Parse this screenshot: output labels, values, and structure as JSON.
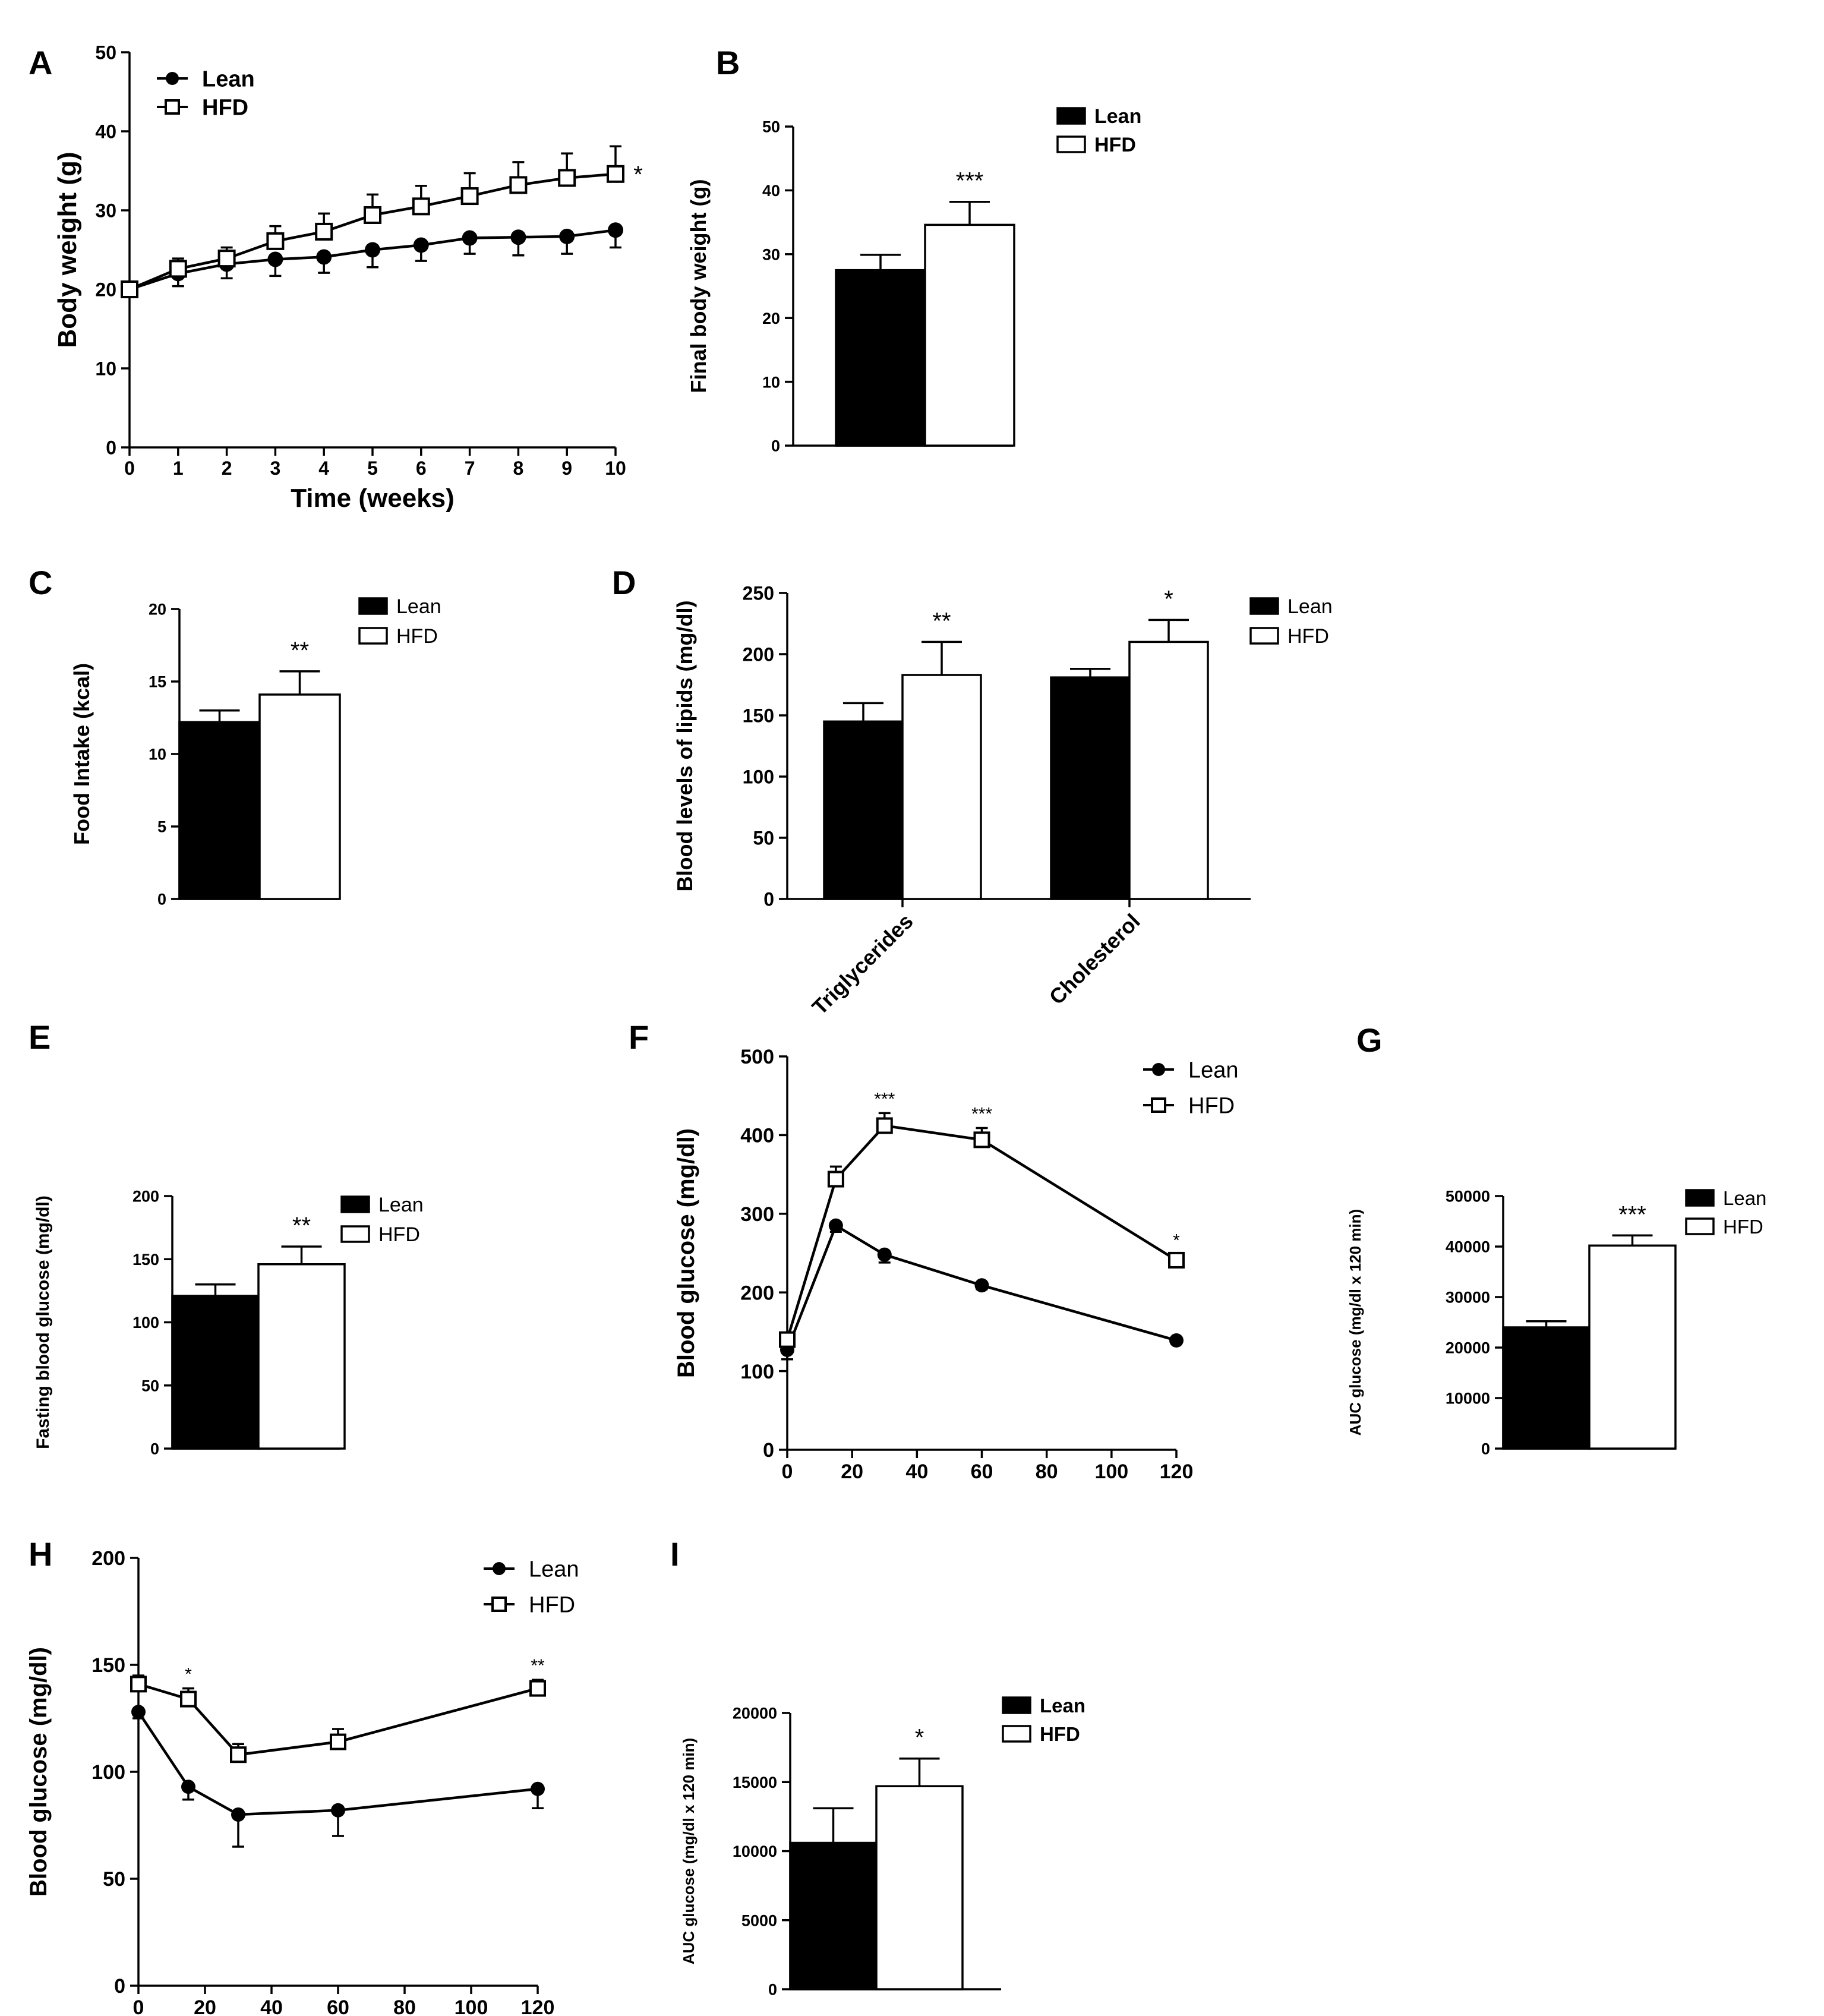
{
  "chart_data": [
    {
      "id": "A",
      "panel_label": "A",
      "type": "line",
      "xlabel": "Time (weeks)",
      "ylabel": "Body weight (g)",
      "xlim": [
        0,
        10
      ],
      "ylim": [
        0,
        50
      ],
      "xticks": [
        0,
        1,
        2,
        3,
        4,
        5,
        6,
        7,
        8,
        9,
        10
      ],
      "yticks": [
        0,
        10,
        20,
        30,
        40,
        50
      ],
      "legend": "top-left",
      "series": [
        {
          "name": "Lean",
          "marker": "filled-circle",
          "x": [
            0,
            1,
            2,
            3,
            4,
            5,
            6,
            7,
            8,
            9,
            10
          ],
          "values": [
            20,
            22,
            23.2,
            23.8,
            24.1,
            25,
            25.6,
            26.5,
            26.6,
            26.7,
            27.5
          ],
          "errors": [
            0.8,
            1.6,
            1.8,
            2.1,
            2,
            2.2,
            2,
            2,
            2.3,
            2.2,
            2.2
          ]
        },
        {
          "name": "HFD",
          "marker": "open-square",
          "x": [
            0,
            1,
            2,
            3,
            4,
            5,
            6,
            7,
            8,
            9,
            10
          ],
          "values": [
            20,
            22.6,
            23.9,
            26.1,
            27.3,
            29.4,
            30.5,
            31.8,
            33.2,
            34.1,
            34.6
          ],
          "errors": [
            0.9,
            1.3,
            1.4,
            1.9,
            2.3,
            2.6,
            2.6,
            2.9,
            2.9,
            3.1,
            3.5
          ]
        }
      ],
      "annotations": [
        {
          "text": "*",
          "series": "HFD",
          "x": 10
        }
      ]
    },
    {
      "id": "B",
      "panel_label": "B",
      "type": "bar",
      "ylabel": "Final body weight (g)",
      "ylim": [
        0,
        50
      ],
      "yticks": [
        0,
        10,
        20,
        30,
        40,
        50
      ],
      "legend": "top-right",
      "series": [
        {
          "name": "Lean",
          "fill": "#000000",
          "values": [
            27.5
          ],
          "errors": [
            2.4
          ]
        },
        {
          "name": "HFD",
          "fill": "#ffffff",
          "values": [
            34.6
          ],
          "errors": [
            3.6
          ]
        }
      ],
      "annotations": [
        {
          "text": "***",
          "series": "HFD",
          "index": 0
        }
      ]
    },
    {
      "id": "C",
      "panel_label": "C",
      "type": "bar",
      "ylabel": "Food Intake (kcal)",
      "ylim": [
        0,
        20
      ],
      "yticks": [
        0,
        5,
        10,
        15,
        20
      ],
      "legend": "top-right",
      "series": [
        {
          "name": "Lean",
          "fill": "#000000",
          "values": [
            12.2
          ],
          "errors": [
            0.8
          ]
        },
        {
          "name": "HFD",
          "fill": "#ffffff",
          "values": [
            14.1
          ],
          "errors": [
            1.6
          ]
        }
      ],
      "annotations": [
        {
          "text": "**",
          "series": "HFD",
          "index": 0
        }
      ]
    },
    {
      "id": "D",
      "panel_label": "D",
      "type": "bar",
      "ylabel": "Blood levels of lipids (mg/dl)",
      "ylim": [
        0,
        250
      ],
      "yticks": [
        0,
        50,
        100,
        150,
        200,
        250
      ],
      "categories": [
        "Triglycerides",
        "Cholesterol"
      ],
      "legend": "top-right",
      "series": [
        {
          "name": "Lean",
          "fill": "#000000",
          "values": [
            145,
            181
          ],
          "errors": [
            15,
            7
          ]
        },
        {
          "name": "HFD",
          "fill": "#ffffff",
          "values": [
            183,
            210
          ],
          "errors": [
            27,
            18
          ]
        }
      ],
      "annotations": [
        {
          "text": "**",
          "series": "HFD",
          "index": 0
        },
        {
          "text": "*",
          "series": "HFD",
          "index": 1
        }
      ]
    },
    {
      "id": "E",
      "panel_label": "E",
      "type": "bar",
      "ylabel": "Fasting blood glucose (mg/dl)",
      "ylim": [
        0,
        200
      ],
      "yticks": [
        0,
        50,
        100,
        150,
        200
      ],
      "legend": "top-right",
      "series": [
        {
          "name": "Lean",
          "fill": "#000000",
          "values": [
            121
          ],
          "errors": [
            9
          ]
        },
        {
          "name": "HFD",
          "fill": "#ffffff",
          "values": [
            146
          ],
          "errors": [
            14
          ]
        }
      ],
      "annotations": [
        {
          "text": "**",
          "series": "HFD",
          "index": 0
        }
      ]
    },
    {
      "id": "F",
      "panel_label": "F",
      "type": "line",
      "xlabel": "",
      "ylabel": "Blood glucose (mg/dl)",
      "xlim": [
        0,
        120
      ],
      "ylim": [
        0,
        500
      ],
      "xticks": [
        0,
        20,
        40,
        60,
        80,
        100,
        120
      ],
      "yticks": [
        0,
        100,
        200,
        300,
        400,
        500
      ],
      "legend": "top-right",
      "series": [
        {
          "name": "Lean",
          "marker": "filled-circle",
          "x": [
            0,
            15,
            30,
            60,
            120
          ],
          "values": [
            127,
            285,
            248,
            209,
            139
          ],
          "errors": [
            12,
            8,
            10,
            5,
            4
          ]
        },
        {
          "name": "HFD",
          "marker": "open-square",
          "x": [
            0,
            15,
            30,
            60,
            120
          ],
          "values": [
            140,
            344,
            412,
            394,
            241
          ],
          "errors": [
            8,
            16,
            16,
            15,
            7
          ]
        }
      ],
      "annotations": [
        {
          "text": "***",
          "series": "HFD",
          "x": 30
        },
        {
          "text": "***",
          "series": "HFD",
          "x": 60
        },
        {
          "text": "*",
          "series": "HFD",
          "x": 120
        }
      ]
    },
    {
      "id": "G",
      "panel_label": "G",
      "type": "bar",
      "ylabel": "AUC glucose (mg/dl x 120 min)",
      "ylim": [
        0,
        50000
      ],
      "yticks": [
        0,
        10000,
        20000,
        30000,
        40000,
        50000
      ],
      "legend": "top-right",
      "series": [
        {
          "name": "Lean",
          "fill": "#000000",
          "values": [
            24000
          ],
          "errors": [
            1200
          ]
        },
        {
          "name": "HFD",
          "fill": "#ffffff",
          "values": [
            40200
          ],
          "errors": [
            2000
          ]
        }
      ],
      "annotations": [
        {
          "text": "***",
          "series": "HFD",
          "index": 0
        }
      ]
    },
    {
      "id": "H",
      "panel_label": "H",
      "type": "line",
      "xlabel": "",
      "ylabel": "Blood glucose (mg/dl)",
      "xlim": [
        0,
        120
      ],
      "ylim": [
        0,
        200
      ],
      "xticks": [
        0,
        20,
        40,
        60,
        80,
        100,
        120
      ],
      "yticks": [
        0,
        50,
        100,
        150,
        200
      ],
      "legend": "top-right",
      "series": [
        {
          "name": "Lean",
          "marker": "filled-circle",
          "x": [
            0,
            15,
            30,
            60,
            120
          ],
          "values": [
            128,
            93,
            80,
            82,
            92
          ],
          "errors": [
            3,
            6,
            15,
            12,
            9
          ]
        },
        {
          "name": "HFD",
          "marker": "open-square",
          "x": [
            0,
            15,
            30,
            60,
            120
          ],
          "values": [
            141,
            134,
            108,
            114,
            139
          ],
          "errors": [
            4,
            5,
            5,
            6,
            4
          ]
        }
      ],
      "annotations": [
        {
          "text": "*",
          "series": "HFD",
          "x": 15
        },
        {
          "text": "**",
          "series": "HFD",
          "x": 120
        }
      ]
    },
    {
      "id": "I",
      "panel_label": "I",
      "type": "bar",
      "ylabel": "AUC glucose (mg/dl x 120 min)",
      "ylim": [
        0,
        20000
      ],
      "yticks": [
        0,
        5000,
        10000,
        15000,
        20000
      ],
      "legend": "top-right",
      "series": [
        {
          "name": "Lean",
          "fill": "#000000",
          "values": [
            10600
          ],
          "errors": [
            2500
          ]
        },
        {
          "name": "HFD",
          "fill": "#ffffff",
          "values": [
            14700
          ],
          "errors": [
            2000
          ]
        }
      ],
      "annotations": [
        {
          "text": "*",
          "series": "HFD",
          "index": 0
        }
      ]
    }
  ]
}
